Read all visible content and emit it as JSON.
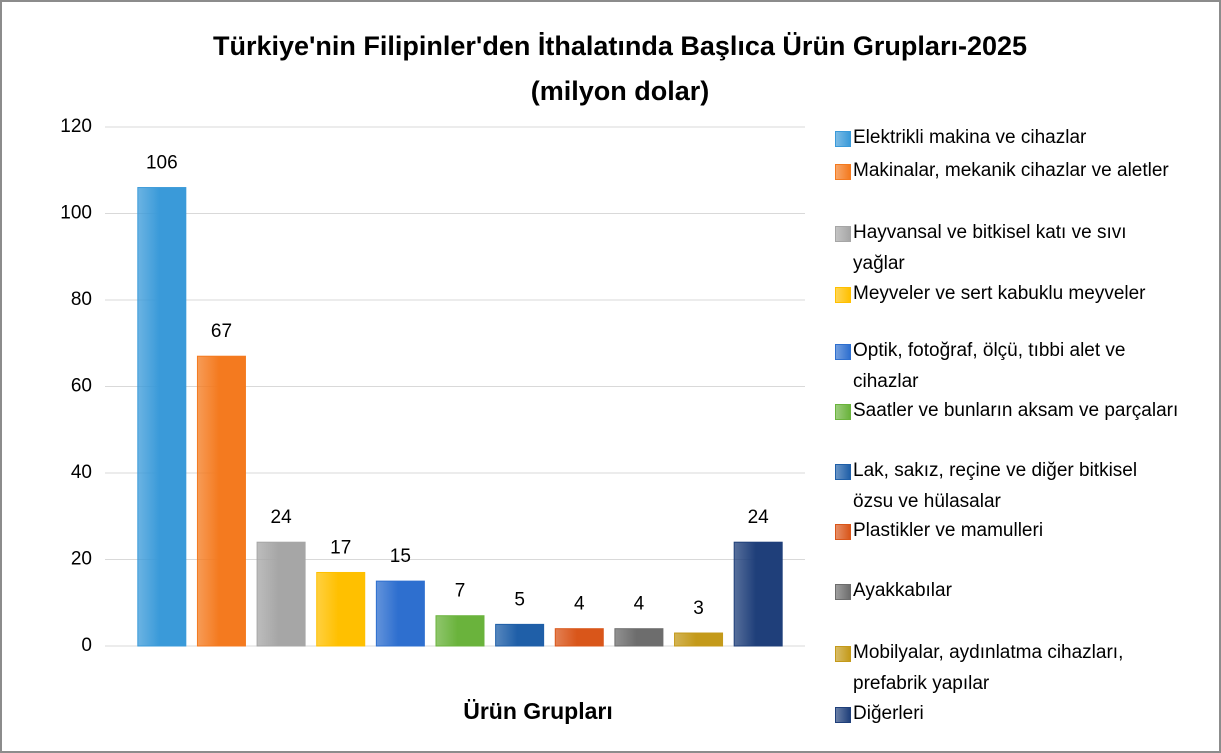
{
  "chart_data": {
    "type": "bar",
    "title": "Türkiye'nin Filipinler'den İthalatında Başlıca Ürün Grupları-2025",
    "subtitle": "(milyon dolar)",
    "x_label": "Ürün Grupları",
    "categories": [
      "Elektrikli makina ve cihazlar",
      "Makinalar, mekanik cihazlar ve aletler",
      "Hayvansal ve bitkisel katı ve sıvı yağlar",
      "Meyveler ve sert kabuklu meyveler",
      "Optik, fotoğraf, ölçü, tıbbi alet ve cihazlar",
      "Saatler ve bunların aksam ve parçaları",
      "Lak, sakız, reçine ve diğer bitkisel özsu ve hülasalar",
      "Plastikler ve mamulleri",
      "Ayakkabılar",
      "Mobilyalar, aydınlatma cihazları, prefabrik yapılar",
      "Diğerleri"
    ],
    "values": [
      106,
      67,
      24,
      17,
      15,
      7,
      5,
      4,
      4,
      3,
      24
    ],
    "colors": [
      "#3a9ad9",
      "#f47a1f",
      "#a6a6a6",
      "#ffc000",
      "#2e6fcf",
      "#6ab33c",
      "#1f5fa8",
      "#d9561a",
      "#6d6d6d",
      "#c49a1a",
      "#1f3f7a"
    ],
    "ylim": [
      0,
      120
    ],
    "yticks": [
      0,
      20,
      40,
      60,
      80,
      100,
      120
    ],
    "grid": true,
    "legend": "right"
  }
}
